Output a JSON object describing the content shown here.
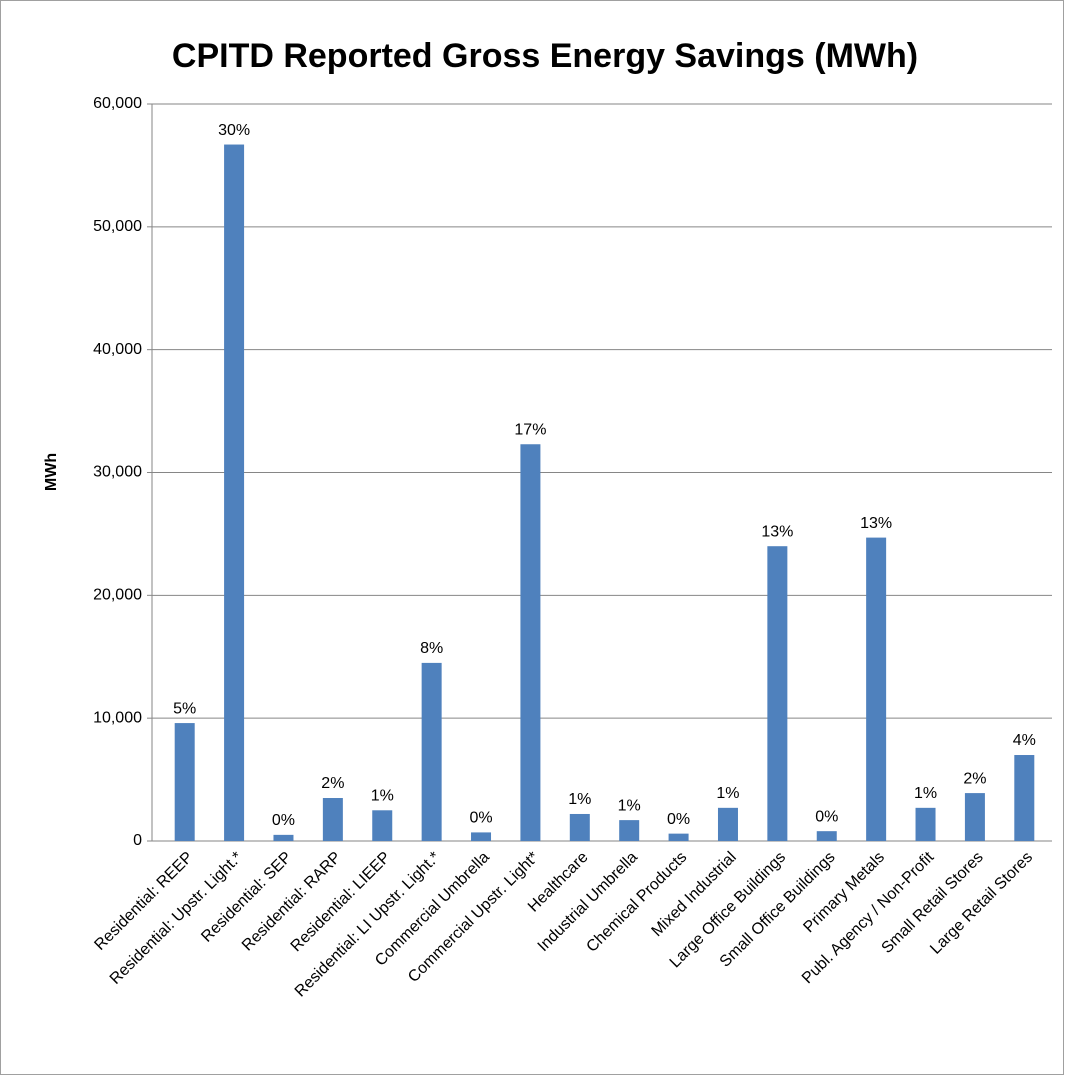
{
  "chart_data": {
    "type": "bar",
    "title": "CPITD Reported Gross Energy Savings (MWh)",
    "y_label": "MWh",
    "categories": [
      "Residential: REEP",
      "Residential: Upstr. Light.*",
      "Residential: SEP",
      "Residential: RARP",
      "Residential: LIEEP",
      "Residential: LI Upstr. Light.*",
      "Commercial Umbrella",
      "Commercial Upstr. Light*",
      "Healthcare",
      "Industrial Umbrella",
      "Chemical Products",
      "Mixed Industrial",
      "Large Office Buildings",
      "Small Office Buildings",
      "Primary Metals",
      "Publ. Agency / Non-Profit",
      "Small Retail Stores",
      "Large Retail Stores"
    ],
    "values": [
      9600,
      56700,
      500,
      3500,
      2500,
      14500,
      700,
      32300,
      2200,
      1700,
      600,
      2700,
      24000,
      800,
      24700,
      2700,
      3900,
      7000
    ],
    "value_labels": [
      "5%",
      "30%",
      "0%",
      "2%",
      "1%",
      "8%",
      "0%",
      "17%",
      "1%",
      "1%",
      "0%",
      "1%",
      "13%",
      "0%",
      "13%",
      "1%",
      "2%",
      "4%"
    ],
    "color": "#4f81bd",
    "ylim": [
      0,
      60000
    ],
    "yticks": [
      0,
      {
        "value": 10000,
        "label": "10,000"
      },
      {
        "value": 20000,
        "label": "20,000"
      },
      {
        "value": 30000,
        "label": "30,000"
      },
      {
        "value": 40000,
        "label": "40,000"
      },
      {
        "value": 50000,
        "label": "50,000"
      },
      {
        "value": 60000,
        "label": "60,000"
      }
    ],
    "grid": true
  }
}
